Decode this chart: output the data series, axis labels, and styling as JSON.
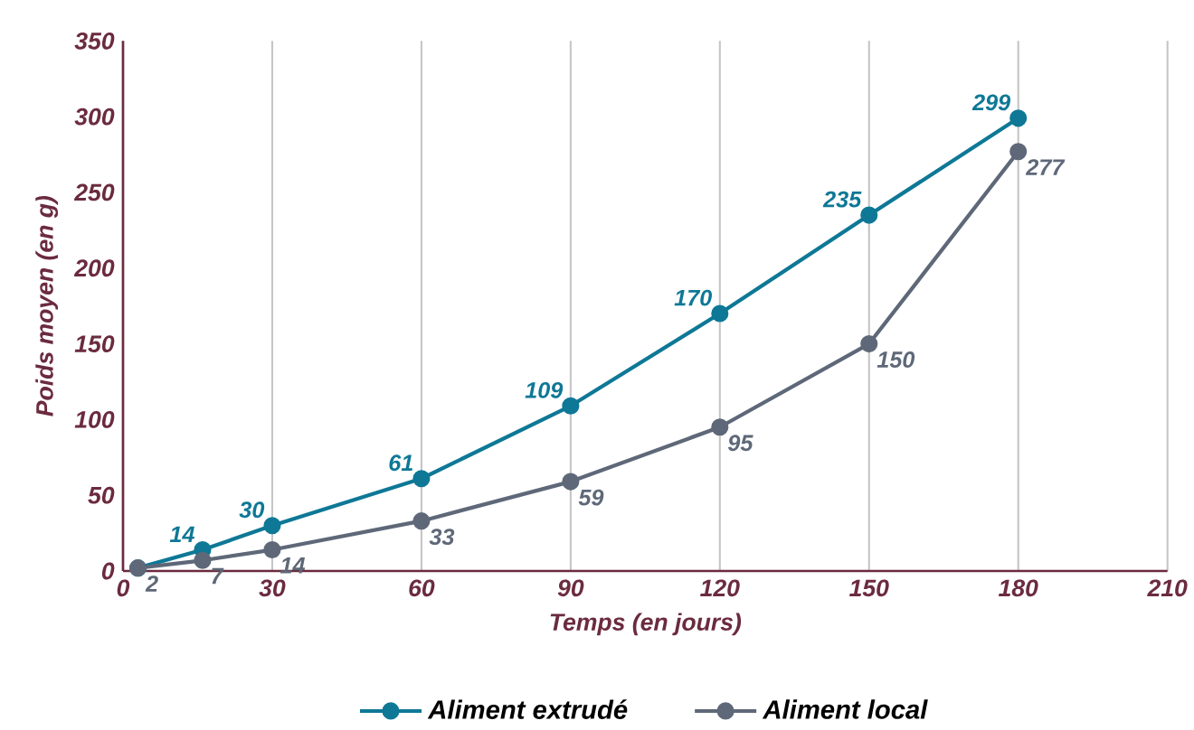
{
  "chart_data": {
    "type": "line",
    "xlabel": "Temps (en jours)",
    "ylabel": "Poids moyen (en g)",
    "x": [
      3,
      16,
      30,
      60,
      90,
      120,
      150,
      180
    ],
    "series": [
      {
        "name": "Aliment extrudé",
        "color": "#0e7896",
        "values": [
          2,
          14,
          30,
          61,
          109,
          170,
          235,
          299
        ],
        "value_labels": [
          null,
          "14",
          "30",
          "61",
          "109",
          "170",
          "235",
          "299"
        ]
      },
      {
        "name": "Aliment local",
        "color": "#5e6878",
        "values": [
          2,
          7,
          14,
          33,
          59,
          95,
          150,
          277
        ],
        "value_labels": [
          "2",
          "7",
          "14",
          "33",
          "59",
          "95",
          "150",
          "277"
        ]
      }
    ],
    "xlim": [
      0,
      210
    ],
    "xticks": [
      0,
      30,
      60,
      90,
      120,
      150,
      180,
      210
    ],
    "ylim": [
      0,
      350
    ],
    "yticks": [
      0,
      50,
      100,
      150,
      200,
      250,
      300,
      350
    ],
    "grid": "x",
    "legend": "bottom",
    "marker": "circle",
    "line_style": "solid"
  }
}
